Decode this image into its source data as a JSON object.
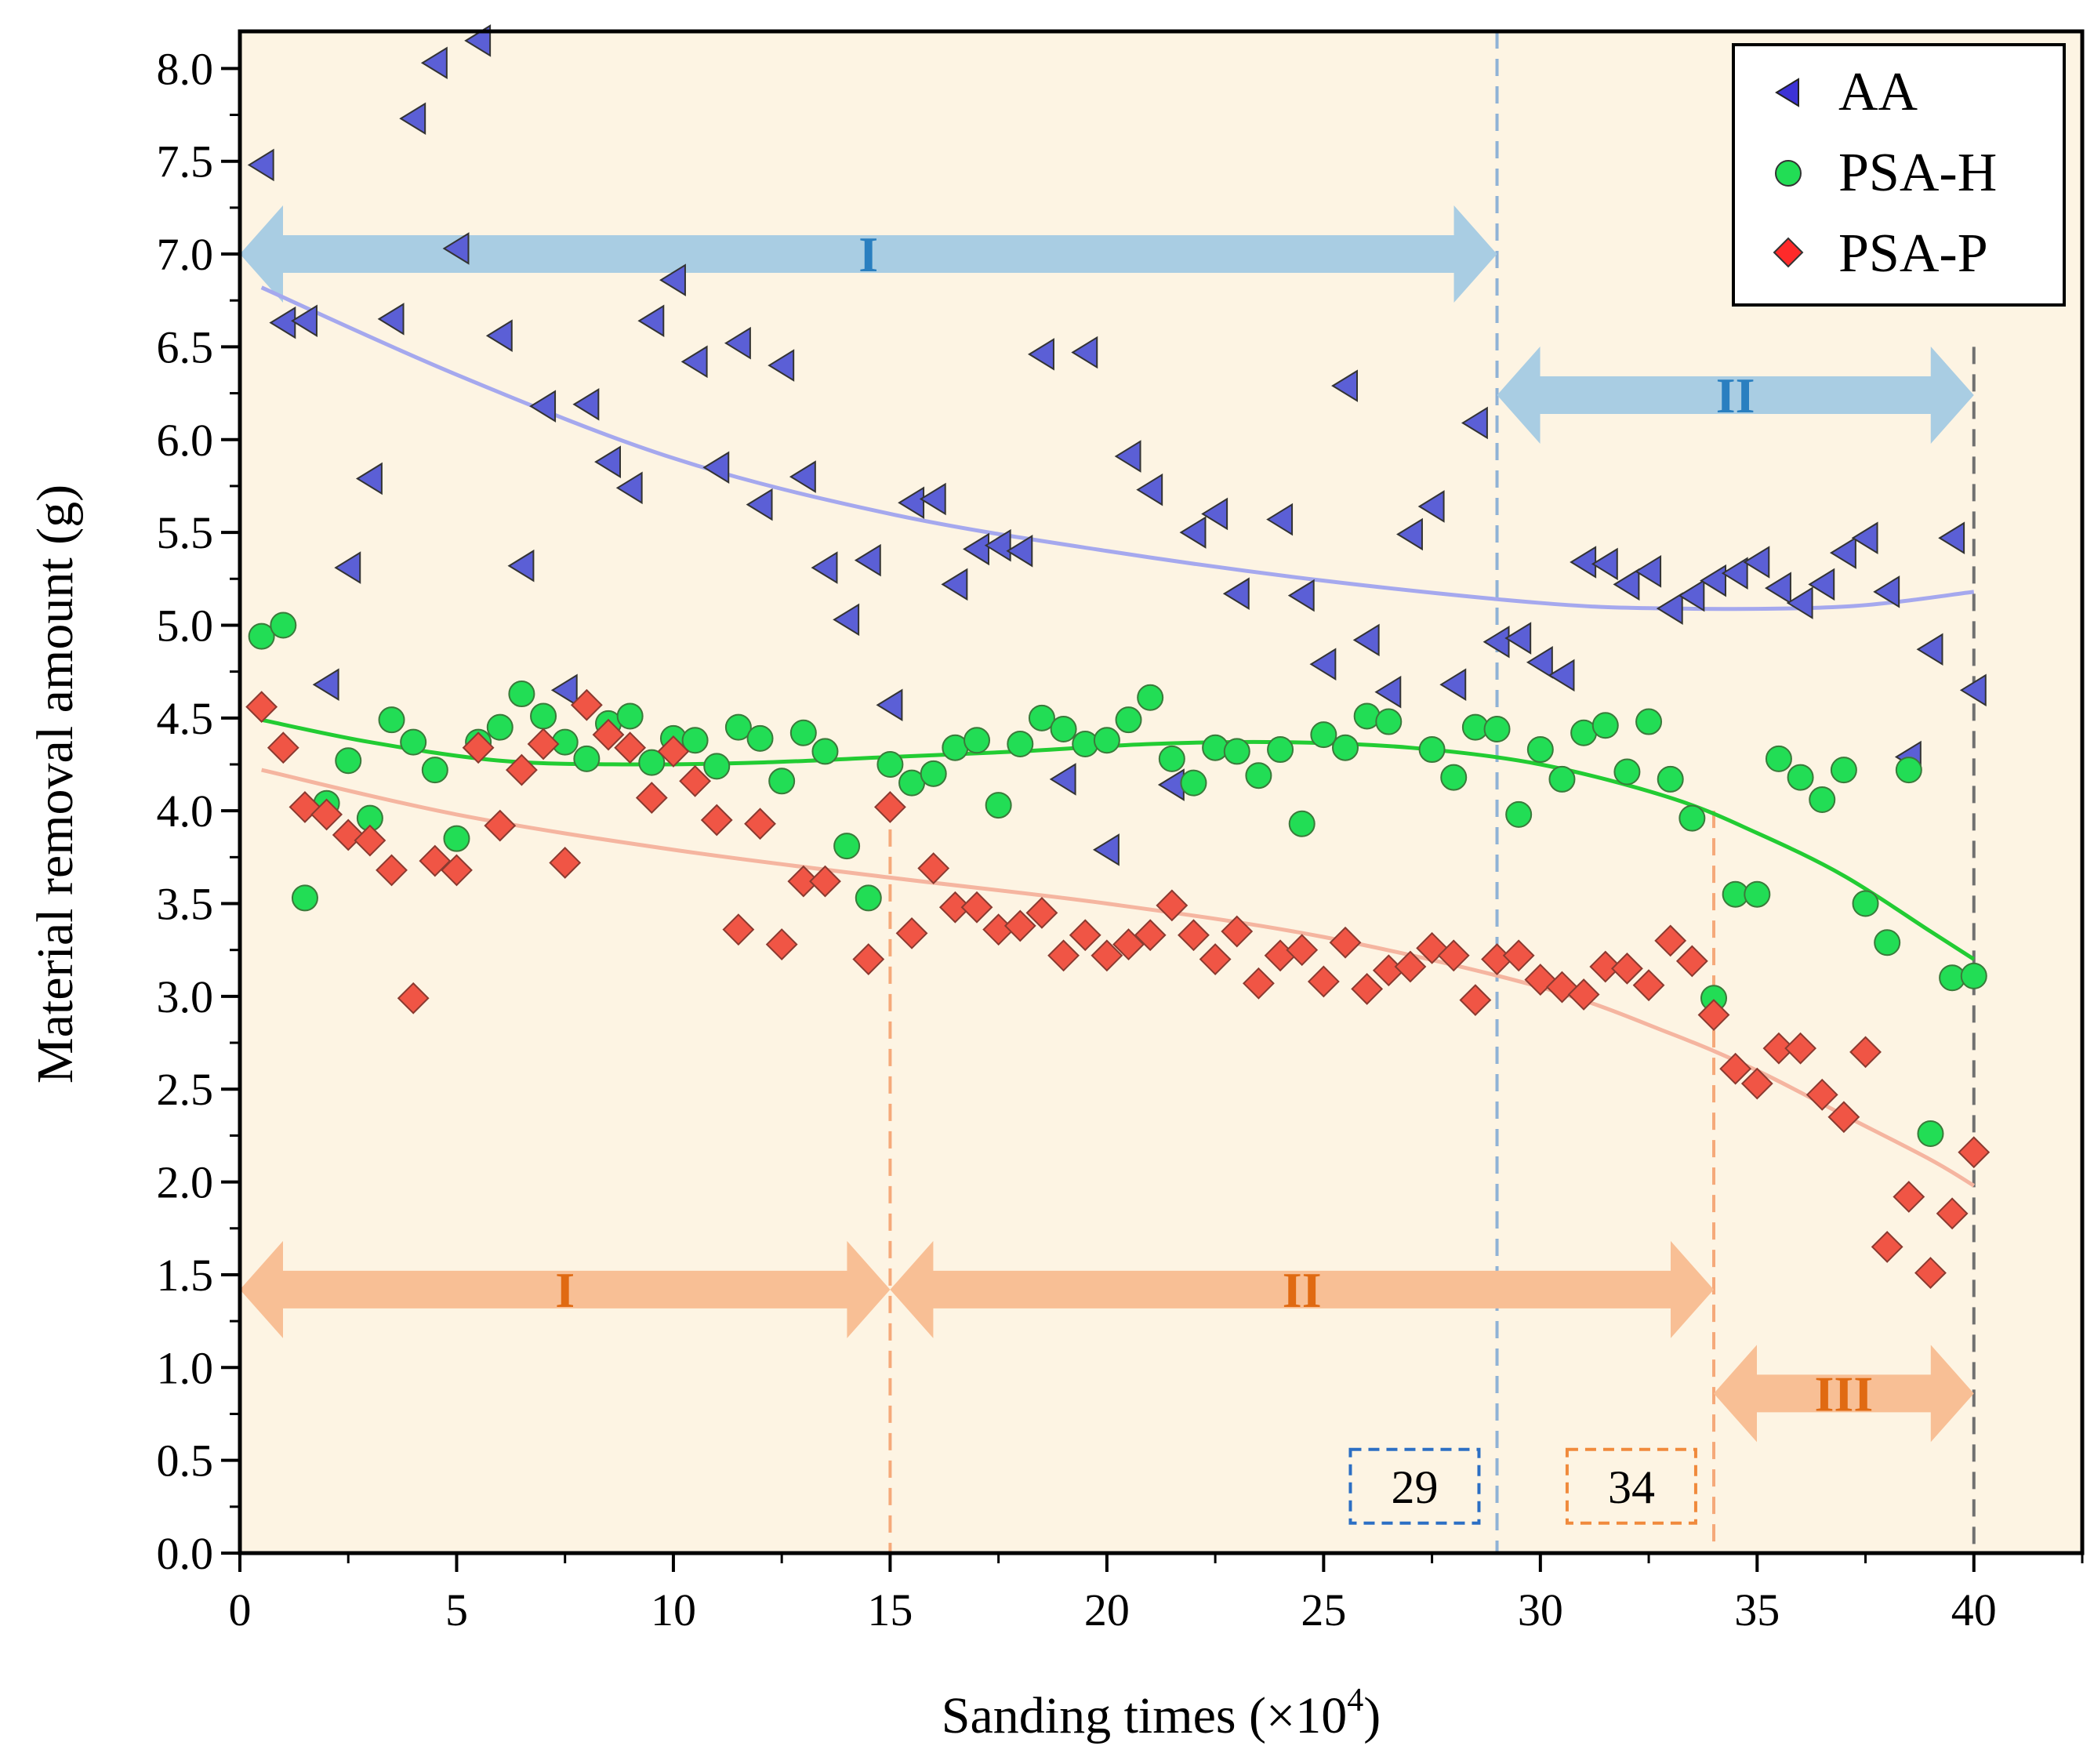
{
  "chart_data": {
    "type": "scatter",
    "title": "",
    "xlabel": "Sanding times (×10",
    "xlabel_sup": "4",
    "xlabel_end": ")",
    "ylabel": "Material removal amount (g)",
    "xlim": [
      0,
      42.5
    ],
    "ylim": [
      0,
      8.2
    ],
    "xticks": [
      0,
      5,
      10,
      15,
      20,
      25,
      30,
      35,
      40
    ],
    "xtick_labels": [
      "0",
      "5",
      "10",
      "15",
      "20",
      "25",
      "30",
      "35",
      "40"
    ],
    "yticks": [
      0,
      0.5,
      1,
      1.5,
      2,
      2.5,
      3,
      3.5,
      4,
      4.5,
      5,
      5.5,
      6,
      6.5,
      7,
      7.5,
      8
    ],
    "ytick_labels": [
      "0.0",
      "0.5",
      "1.0",
      "1.5",
      "2.0",
      "2.5",
      "3.0",
      "3.5",
      "4.0",
      "4.5",
      "5.0",
      "5.5",
      "6.0",
      "6.5",
      "7.0",
      "7.5",
      "8.0"
    ],
    "legend_position": "top-right",
    "background_color": "#fdf4e3",
    "series": [
      {
        "name": "AA",
        "marker": "triangle-left",
        "color": "#5b5fd6",
        "fit_color": "#a5a8ee",
        "fit": [
          [
            0.5,
            6.82
          ],
          [
            5,
            6.35
          ],
          [
            10,
            5.9
          ],
          [
            15,
            5.6
          ],
          [
            20,
            5.4
          ],
          [
            25,
            5.24
          ],
          [
            30,
            5.12
          ],
          [
            33,
            5.09
          ],
          [
            37,
            5.1
          ],
          [
            40,
            5.18
          ]
        ],
        "points": [
          [
            0.5,
            7.48
          ],
          [
            1,
            6.63
          ],
          [
            1.5,
            6.64
          ],
          [
            2,
            4.68
          ],
          [
            2.5,
            5.31
          ],
          [
            3,
            5.79
          ],
          [
            3.5,
            6.65
          ],
          [
            4,
            7.73
          ],
          [
            4.5,
            8.03
          ],
          [
            5,
            7.03
          ],
          [
            5.5,
            8.15
          ],
          [
            6,
            6.56
          ],
          [
            6.5,
            5.32
          ],
          [
            7,
            6.18
          ],
          [
            7.5,
            4.65
          ],
          [
            8,
            6.19
          ],
          [
            8.5,
            5.88
          ],
          [
            9,
            5.74
          ],
          [
            9.5,
            6.64
          ],
          [
            10,
            6.86
          ],
          [
            10.5,
            6.42
          ],
          [
            11,
            5.85
          ],
          [
            11.5,
            6.52
          ],
          [
            12,
            5.65
          ],
          [
            12.5,
            6.4
          ],
          [
            13,
            5.8
          ],
          [
            13.5,
            5.31
          ],
          [
            14,
            5.03
          ],
          [
            14.5,
            5.35
          ],
          [
            15,
            4.57
          ],
          [
            15.5,
            5.66
          ],
          [
            16,
            5.68
          ],
          [
            16.5,
            5.22
          ],
          [
            17,
            5.41
          ],
          [
            17.5,
            5.43
          ],
          [
            18,
            5.4
          ],
          [
            18.5,
            6.46
          ],
          [
            19,
            4.17
          ],
          [
            19.5,
            6.47
          ],
          [
            20,
            3.79
          ],
          [
            20.5,
            5.91
          ],
          [
            21,
            5.73
          ],
          [
            21.5,
            4.14
          ],
          [
            22,
            5.5
          ],
          [
            22.5,
            5.6
          ],
          [
            23,
            5.17
          ],
          [
            24,
            5.57
          ],
          [
            24.5,
            5.16
          ],
          [
            25,
            4.79
          ],
          [
            25.5,
            6.29
          ],
          [
            26,
            4.92
          ],
          [
            26.5,
            4.64
          ],
          [
            27,
            5.49
          ],
          [
            27.5,
            5.64
          ],
          [
            28,
            4.68
          ],
          [
            28.5,
            6.09
          ],
          [
            29,
            4.91
          ],
          [
            29.5,
            4.93
          ],
          [
            30,
            4.8
          ],
          [
            30.5,
            4.73
          ],
          [
            31,
            5.34
          ],
          [
            31.5,
            5.33
          ],
          [
            32,
            5.22
          ],
          [
            32.5,
            5.29
          ],
          [
            33,
            5.09
          ],
          [
            33.5,
            5.16
          ],
          [
            34,
            5.24
          ],
          [
            34.5,
            5.28
          ],
          [
            35,
            5.34
          ],
          [
            35.5,
            5.2
          ],
          [
            36,
            5.12
          ],
          [
            36.5,
            5.22
          ],
          [
            37,
            5.39
          ],
          [
            37.5,
            5.47
          ],
          [
            38,
            5.18
          ],
          [
            38.5,
            4.29
          ],
          [
            39,
            4.87
          ],
          [
            39.5,
            5.47
          ],
          [
            40,
            4.65
          ]
        ]
      },
      {
        "name": "PSA-H",
        "marker": "circle",
        "color": "#22dd55",
        "fit_color": "#22cc33",
        "fit": [
          [
            0.5,
            4.49
          ],
          [
            3,
            4.37
          ],
          [
            6,
            4.27
          ],
          [
            9,
            4.25
          ],
          [
            12,
            4.26
          ],
          [
            15,
            4.29
          ],
          [
            18,
            4.32
          ],
          [
            21,
            4.36
          ],
          [
            24,
            4.37
          ],
          [
            27,
            4.34
          ],
          [
            30,
            4.25
          ],
          [
            33,
            4.07
          ],
          [
            35,
            3.88
          ],
          [
            37,
            3.65
          ],
          [
            39,
            3.35
          ],
          [
            40,
            3.2
          ]
        ],
        "points": [
          [
            0.5,
            4.94
          ],
          [
            1,
            5.0
          ],
          [
            1.5,
            3.53
          ],
          [
            2,
            4.04
          ],
          [
            2.5,
            4.27
          ],
          [
            3,
            3.96
          ],
          [
            3.5,
            4.49
          ],
          [
            4,
            4.37
          ],
          [
            4.5,
            4.22
          ],
          [
            5,
            3.85
          ],
          [
            5.5,
            4.37
          ],
          [
            6,
            4.45
          ],
          [
            6.5,
            4.63
          ],
          [
            7,
            4.51
          ],
          [
            7.5,
            4.37
          ],
          [
            8,
            4.28
          ],
          [
            8.5,
            4.47
          ],
          [
            9,
            4.51
          ],
          [
            9.5,
            4.26
          ],
          [
            10,
            4.39
          ],
          [
            10.5,
            4.38
          ],
          [
            11,
            4.24
          ],
          [
            11.5,
            4.45
          ],
          [
            12,
            4.39
          ],
          [
            12.5,
            4.16
          ],
          [
            13,
            4.42
          ],
          [
            13.5,
            4.32
          ],
          [
            14,
            3.81
          ],
          [
            14.5,
            3.53
          ],
          [
            15,
            4.25
          ],
          [
            15.5,
            4.15
          ],
          [
            16,
            4.2
          ],
          [
            16.5,
            4.34
          ],
          [
            17,
            4.38
          ],
          [
            17.5,
            4.03
          ],
          [
            18,
            4.36
          ],
          [
            18.5,
            4.5
          ],
          [
            19,
            4.44
          ],
          [
            19.5,
            4.36
          ],
          [
            20,
            4.38
          ],
          [
            20.5,
            4.49
          ],
          [
            21,
            4.61
          ],
          [
            21.5,
            4.28
          ],
          [
            22,
            4.15
          ],
          [
            22.5,
            4.34
          ],
          [
            23,
            4.32
          ],
          [
            23.5,
            4.19
          ],
          [
            24,
            4.33
          ],
          [
            24.5,
            3.93
          ],
          [
            25,
            4.41
          ],
          [
            25.5,
            4.34
          ],
          [
            26,
            4.51
          ],
          [
            26.5,
            4.48
          ],
          [
            27.5,
            4.33
          ],
          [
            28,
            4.18
          ],
          [
            28.5,
            4.45
          ],
          [
            29,
            4.44
          ],
          [
            29.5,
            3.98
          ],
          [
            30,
            4.33
          ],
          [
            30.5,
            4.17
          ],
          [
            31,
            4.42
          ],
          [
            31.5,
            4.46
          ],
          [
            32,
            4.21
          ],
          [
            32.5,
            4.48
          ],
          [
            33,
            4.17
          ],
          [
            33.5,
            3.96
          ],
          [
            34,
            2.99
          ],
          [
            34.5,
            3.55
          ],
          [
            35,
            3.55
          ],
          [
            35.5,
            4.28
          ],
          [
            36,
            4.18
          ],
          [
            36.5,
            4.06
          ],
          [
            37,
            4.22
          ],
          [
            37.5,
            3.5
          ],
          [
            38,
            3.29
          ],
          [
            38.5,
            4.22
          ],
          [
            39,
            2.26
          ],
          [
            39.5,
            3.1
          ],
          [
            40,
            3.11
          ]
        ]
      },
      {
        "name": "PSA-P",
        "marker": "diamond",
        "color": "#f05545",
        "fit_color": "#f5b5a0",
        "fit": [
          [
            0.5,
            4.22
          ],
          [
            5,
            3.98
          ],
          [
            10,
            3.79
          ],
          [
            15,
            3.64
          ],
          [
            20,
            3.5
          ],
          [
            25,
            3.32
          ],
          [
            30,
            3.05
          ],
          [
            33,
            2.8
          ],
          [
            35,
            2.6
          ],
          [
            37,
            2.36
          ],
          [
            39,
            2.12
          ],
          [
            40,
            1.98
          ]
        ],
        "points": [
          [
            0.5,
            4.56
          ],
          [
            1,
            4.34
          ],
          [
            1.5,
            4.02
          ],
          [
            2,
            3.98
          ],
          [
            2.5,
            3.87
          ],
          [
            3,
            3.84
          ],
          [
            3.5,
            3.68
          ],
          [
            4,
            2.99
          ],
          [
            4.5,
            3.73
          ],
          [
            5,
            3.68
          ],
          [
            5.5,
            4.34
          ],
          [
            6,
            3.92
          ],
          [
            6.5,
            4.22
          ],
          [
            7,
            4.36
          ],
          [
            7.5,
            3.72
          ],
          [
            8,
            4.57
          ],
          [
            8.5,
            4.41
          ],
          [
            9,
            4.34
          ],
          [
            9.5,
            4.07
          ],
          [
            10,
            4.32
          ],
          [
            10.5,
            4.16
          ],
          [
            11,
            3.95
          ],
          [
            11.5,
            3.36
          ],
          [
            12,
            3.93
          ],
          [
            12.5,
            3.28
          ],
          [
            13,
            3.62
          ],
          [
            13.5,
            3.62
          ],
          [
            14.5,
            3.2
          ],
          [
            15,
            4.02
          ],
          [
            15.5,
            3.34
          ],
          [
            16,
            3.69
          ],
          [
            16.5,
            3.48
          ],
          [
            17,
            3.48
          ],
          [
            17.5,
            3.36
          ],
          [
            18,
            3.38
          ],
          [
            18.5,
            3.45
          ],
          [
            19,
            3.22
          ],
          [
            19.5,
            3.33
          ],
          [
            20,
            3.22
          ],
          [
            20.5,
            3.28
          ],
          [
            21,
            3.33
          ],
          [
            21.5,
            3.49
          ],
          [
            22,
            3.33
          ],
          [
            22.5,
            3.2
          ],
          [
            23,
            3.35
          ],
          [
            23.5,
            3.07
          ],
          [
            24,
            3.22
          ],
          [
            24.5,
            3.25
          ],
          [
            25,
            3.08
          ],
          [
            25.5,
            3.29
          ],
          [
            26,
            3.04
          ],
          [
            26.5,
            3.14
          ],
          [
            27,
            3.16
          ],
          [
            27.5,
            3.26
          ],
          [
            28,
            3.22
          ],
          [
            28.5,
            2.98
          ],
          [
            29,
            3.2
          ],
          [
            29.5,
            3.22
          ],
          [
            30,
            3.09
          ],
          [
            30.5,
            3.05
          ],
          [
            31,
            3.01
          ],
          [
            31.5,
            3.16
          ],
          [
            32,
            3.15
          ],
          [
            32.5,
            3.06
          ],
          [
            33,
            3.3
          ],
          [
            33.5,
            3.19
          ],
          [
            34,
            2.9
          ],
          [
            34.5,
            2.61
          ],
          [
            35,
            2.53
          ],
          [
            35.5,
            2.72
          ],
          [
            36,
            2.72
          ],
          [
            36.5,
            2.47
          ],
          [
            37,
            2.35
          ],
          [
            37.5,
            2.7
          ],
          [
            38,
            1.65
          ],
          [
            38.5,
            1.92
          ],
          [
            39,
            1.51
          ],
          [
            39.5,
            1.83
          ],
          [
            40,
            2.16
          ]
        ]
      }
    ],
    "stage_arrows": [
      {
        "label": "I",
        "x_start": 0,
        "x_end": 29,
        "y": 7.0,
        "color": "#a9cde3",
        "text_color": "#2a7fc0"
      },
      {
        "label": "II",
        "x_start": 29,
        "x_end": 40,
        "y": 6.24,
        "color": "#a9cde3",
        "text_color": "#2a7fc0"
      },
      {
        "label": "I",
        "x_start": 0,
        "x_end": 15,
        "y": 1.42,
        "color": "#f8bf95",
        "text_color": "#e06a12"
      },
      {
        "label": "II",
        "x_start": 15,
        "x_end": 34,
        "y": 1.42,
        "color": "#f8bf95",
        "text_color": "#e06a12"
      },
      {
        "label": "III",
        "x_start": 34,
        "x_end": 40,
        "y": 0.86,
        "color": "#f8bf95",
        "text_color": "#e06a12"
      }
    ],
    "vlines": [
      {
        "x": 29,
        "y_top": 8.2,
        "color": "#8fb2d6"
      },
      {
        "x": 15,
        "y_top": 3.9,
        "color": "#f5a97a"
      },
      {
        "x": 34,
        "y_top": 4.0,
        "color": "#f5a97a"
      },
      {
        "x": 40,
        "y_top": 6.5,
        "color": "#707070"
      }
    ],
    "boxes": [
      {
        "text": "29",
        "x_center": 27.1,
        "y_center": 0.36,
        "color": "#2c6fc4"
      },
      {
        "text": "34",
        "x_center": 32.1,
        "y_center": 0.36,
        "color": "#f08a3c"
      }
    ]
  }
}
